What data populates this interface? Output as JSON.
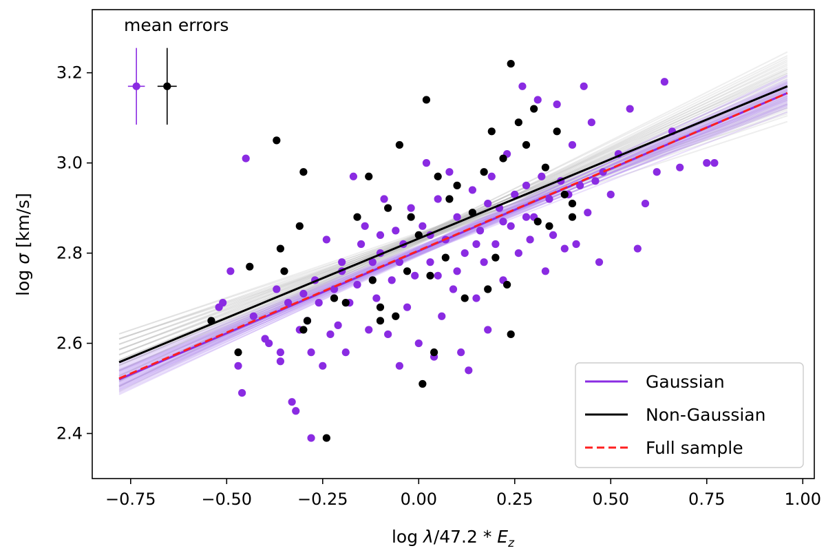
{
  "chart_data": {
    "type": "scatter",
    "title": "",
    "xlabel": "log λ/47.2 * E_z",
    "xlabel_parts": {
      "pre": "log ",
      "lambda": "λ",
      "mid": "/47.2 * ",
      "E": "E",
      "sub": "z"
    },
    "ylabel": "log σ [km/s]",
    "ylabel_parts": {
      "pre": "log ",
      "sigma": "σ",
      "post": " [km/s]"
    },
    "xlim": [
      -0.85,
      1.03
    ],
    "ylim": [
      2.3,
      3.34
    ],
    "xticks": [
      -0.75,
      -0.5,
      -0.25,
      0.0,
      0.25,
      0.5,
      0.75,
      1.0
    ],
    "xtick_labels": [
      "−0.75",
      "−0.50",
      "−0.25",
      "0.00",
      "0.25",
      "0.50",
      "0.75",
      "1.00"
    ],
    "yticks": [
      2.4,
      2.6,
      2.8,
      3.0,
      3.2
    ],
    "ytick_labels": [
      "2.4",
      "2.6",
      "2.8",
      "3.0",
      "3.2"
    ],
    "grid": false,
    "legend_position": "bottom-right",
    "colors": {
      "gaussian": "#8a2be2",
      "non_gaussian": "#000000",
      "full": "#ff1f1f",
      "gaussian_band": "#b48cf0",
      "non_gaussian_band": "#b0b0b0"
    },
    "annotation": "mean errors",
    "mean_errors": [
      {
        "series": "Gaussian",
        "x": -0.735,
        "y": 3.17,
        "xerr": 0.022,
        "yerr": 0.085
      },
      {
        "series": "Non-Gaussian",
        "x": -0.655,
        "y": 3.17,
        "xerr": 0.025,
        "yerr": 0.085
      }
    ],
    "fit_lines": [
      {
        "name": "Gaussian",
        "style": "solid",
        "x": [
          -0.78,
          0.96
        ],
        "y": [
          2.52,
          3.155
        ]
      },
      {
        "name": "Non-Gaussian",
        "style": "solid",
        "x": [
          -0.78,
          0.96
        ],
        "y": [
          2.558,
          3.17
        ]
      },
      {
        "name": "Full sample",
        "style": "dashed",
        "x": [
          -0.78,
          0.96
        ],
        "y": [
          2.522,
          3.155
        ]
      }
    ],
    "series": [
      {
        "name": "Gaussian",
        "points": [
          [
            -0.52,
            2.68
          ],
          [
            -0.51,
            2.69
          ],
          [
            -0.49,
            2.76
          ],
          [
            -0.45,
            3.01
          ],
          [
            -0.47,
            2.55
          ],
          [
            -0.46,
            2.49
          ],
          [
            -0.43,
            2.66
          ],
          [
            -0.4,
            2.61
          ],
          [
            -0.39,
            2.6
          ],
          [
            -0.37,
            2.72
          ],
          [
            -0.36,
            2.56
          ],
          [
            -0.36,
            2.58
          ],
          [
            -0.34,
            2.69
          ],
          [
            -0.33,
            2.47
          ],
          [
            -0.32,
            2.45
          ],
          [
            -0.31,
            2.63
          ],
          [
            -0.3,
            2.71
          ],
          [
            -0.29,
            2.65
          ],
          [
            -0.28,
            2.39
          ],
          [
            -0.28,
            2.58
          ],
          [
            -0.27,
            2.74
          ],
          [
            -0.26,
            2.69
          ],
          [
            -0.25,
            2.55
          ],
          [
            -0.24,
            2.83
          ],
          [
            -0.23,
            2.62
          ],
          [
            -0.22,
            2.72
          ],
          [
            -0.21,
            2.64
          ],
          [
            -0.2,
            2.78
          ],
          [
            -0.19,
            2.58
          ],
          [
            -0.18,
            2.69
          ],
          [
            -0.17,
            2.97
          ],
          [
            -0.16,
            2.73
          ],
          [
            -0.15,
            2.82
          ],
          [
            -0.14,
            2.86
          ],
          [
            -0.13,
            2.63
          ],
          [
            -0.12,
            2.78
          ],
          [
            -0.11,
            2.7
          ],
          [
            -0.1,
            2.8
          ],
          [
            -0.09,
            2.92
          ],
          [
            -0.08,
            2.62
          ],
          [
            -0.07,
            2.74
          ],
          [
            -0.06,
            2.85
          ],
          [
            -0.05,
            2.55
          ],
          [
            -0.04,
            2.82
          ],
          [
            -0.03,
            2.68
          ],
          [
            -0.02,
            2.9
          ],
          [
            -0.01,
            2.75
          ],
          [
            0.0,
            2.6
          ],
          [
            0.01,
            2.86
          ],
          [
            0.02,
            3.0
          ],
          [
            0.03,
            2.78
          ],
          [
            0.04,
            2.57
          ],
          [
            0.05,
            2.92
          ],
          [
            0.06,
            2.66
          ],
          [
            0.07,
            2.83
          ],
          [
            0.08,
            2.98
          ],
          [
            0.09,
            2.72
          ],
          [
            0.1,
            2.88
          ],
          [
            0.11,
            2.58
          ],
          [
            0.12,
            2.8
          ],
          [
            0.13,
            2.54
          ],
          [
            0.14,
            2.94
          ],
          [
            0.15,
            2.7
          ],
          [
            0.16,
            2.85
          ],
          [
            0.17,
            2.78
          ],
          [
            0.18,
            2.63
          ],
          [
            0.19,
            2.97
          ],
          [
            0.2,
            2.82
          ],
          [
            0.21,
            2.9
          ],
          [
            0.22,
            2.74
          ],
          [
            0.23,
            3.02
          ],
          [
            0.24,
            2.86
          ],
          [
            0.25,
            2.93
          ],
          [
            0.26,
            2.8
          ],
          [
            0.27,
            3.17
          ],
          [
            0.28,
            2.95
          ],
          [
            0.29,
            2.83
          ],
          [
            0.3,
            2.88
          ],
          [
            0.31,
            3.14
          ],
          [
            0.32,
            2.97
          ],
          [
            0.33,
            2.76
          ],
          [
            0.34,
            2.92
          ],
          [
            0.35,
            2.84
          ],
          [
            0.36,
            3.13
          ],
          [
            0.37,
            2.96
          ],
          [
            0.38,
            2.81
          ],
          [
            0.39,
            2.93
          ],
          [
            0.4,
            3.04
          ],
          [
            0.41,
            2.82
          ],
          [
            0.42,
            2.95
          ],
          [
            0.43,
            3.17
          ],
          [
            0.44,
            2.89
          ],
          [
            0.45,
            3.09
          ],
          [
            0.46,
            2.96
          ],
          [
            0.47,
            2.78
          ],
          [
            0.48,
            2.98
          ],
          [
            0.5,
            2.93
          ],
          [
            0.52,
            3.02
          ],
          [
            0.55,
            3.12
          ],
          [
            0.57,
            2.81
          ],
          [
            0.59,
            2.91
          ],
          [
            0.62,
            2.98
          ],
          [
            0.64,
            3.18
          ],
          [
            0.66,
            3.07
          ],
          [
            0.68,
            2.99
          ],
          [
            0.75,
            3.0
          ],
          [
            0.77,
            3.0
          ],
          [
            -0.05,
            2.78
          ],
          [
            0.03,
            2.84
          ],
          [
            0.1,
            2.76
          ],
          [
            0.15,
            2.82
          ],
          [
            -0.2,
            2.76
          ],
          [
            0.05,
            2.75
          ],
          [
            0.22,
            2.87
          ],
          [
            -0.1,
            2.84
          ],
          [
            0.18,
            2.91
          ],
          [
            0.28,
            2.88
          ]
        ]
      },
      {
        "name": "Non-Gaussian",
        "points": [
          [
            -0.54,
            2.65
          ],
          [
            -0.47,
            2.58
          ],
          [
            -0.44,
            2.77
          ],
          [
            -0.37,
            3.05
          ],
          [
            -0.36,
            2.81
          ],
          [
            -0.35,
            2.76
          ],
          [
            -0.31,
            2.86
          ],
          [
            -0.3,
            2.98
          ],
          [
            -0.3,
            2.63
          ],
          [
            -0.29,
            2.65
          ],
          [
            -0.24,
            2.39
          ],
          [
            -0.22,
            2.7
          ],
          [
            -0.19,
            2.69
          ],
          [
            -0.16,
            2.88
          ],
          [
            -0.13,
            2.97
          ],
          [
            -0.12,
            2.74
          ],
          [
            -0.1,
            2.65
          ],
          [
            -0.1,
            2.68
          ],
          [
            -0.08,
            2.9
          ],
          [
            -0.06,
            2.66
          ],
          [
            -0.05,
            3.04
          ],
          [
            -0.03,
            2.76
          ],
          [
            -0.02,
            2.88
          ],
          [
            0.0,
            2.84
          ],
          [
            0.01,
            2.51
          ],
          [
            0.02,
            3.14
          ],
          [
            0.03,
            2.75
          ],
          [
            0.04,
            2.58
          ],
          [
            0.05,
            2.97
          ],
          [
            0.07,
            2.79
          ],
          [
            0.08,
            2.92
          ],
          [
            0.1,
            2.95
          ],
          [
            0.12,
            2.7
          ],
          [
            0.14,
            2.89
          ],
          [
            0.17,
            2.98
          ],
          [
            0.18,
            2.72
          ],
          [
            0.19,
            3.07
          ],
          [
            0.2,
            2.79
          ],
          [
            0.22,
            3.01
          ],
          [
            0.23,
            2.73
          ],
          [
            0.24,
            2.62
          ],
          [
            0.24,
            3.22
          ],
          [
            0.26,
            3.09
          ],
          [
            0.28,
            3.04
          ],
          [
            0.3,
            3.12
          ],
          [
            0.31,
            2.87
          ],
          [
            0.33,
            2.99
          ],
          [
            0.34,
            2.86
          ],
          [
            0.36,
            3.07
          ],
          [
            0.38,
            2.93
          ],
          [
            0.4,
            2.91
          ],
          [
            0.4,
            2.88
          ]
        ]
      }
    ]
  }
}
